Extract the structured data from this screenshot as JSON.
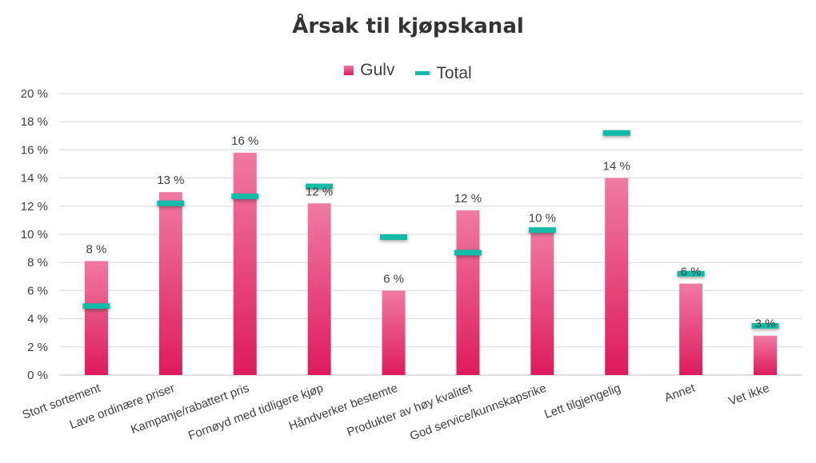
{
  "chart_data": {
    "type": "bar",
    "title": "Årsak til kjøpskanal",
    "xlabel": "",
    "ylabel": "",
    "ylim": [
      0,
      20
    ],
    "ytick_step": 2,
    "ytick_suffix": " %",
    "grid": true,
    "legend": "top-center",
    "categories": [
      "Stort sortement",
      "Lave ordinære priser",
      "Kampanje/rabattert pris",
      "Fornøyd med tidligere kjøp",
      "Håndverker bestemte",
      "Produkter av høy kvalitet",
      "God service/kunnskapsrike",
      "Lett tilgjengelig",
      "Annet",
      "Vet ikke"
    ],
    "series": [
      {
        "name": "Gulv",
        "kind": "bar",
        "color_top": "#f07aa1",
        "color_bottom": "#de1b5c",
        "values": [
          8.1,
          13.0,
          15.8,
          12.2,
          6.0,
          11.7,
          10.3,
          14.0,
          6.5,
          2.8
        ],
        "labels": [
          "8 %",
          "13 %",
          "16 %",
          "12 %",
          "6 %",
          "12 %",
          "10 %",
          "14 %",
          "6 %",
          "3 %"
        ]
      },
      {
        "name": "Total",
        "kind": "marker",
        "color": "#12bba7",
        "values": [
          4.9,
          12.2,
          12.7,
          13.4,
          9.8,
          8.7,
          10.3,
          17.2,
          7.2,
          3.5
        ]
      }
    ]
  }
}
